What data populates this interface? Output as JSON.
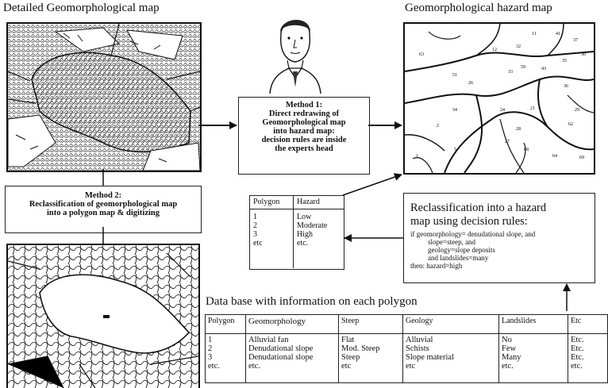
{
  "titles": {
    "detailed_map": "Detailed Geomorphological map",
    "hazard_map": "Geomorphological hazard map",
    "database": "Data base with information on each polygon"
  },
  "method1": {
    "heading": "Method 1:",
    "lines": [
      "Direct redrawing of",
      "Geomorphological map",
      "into hazard map:",
      "decision rules are inside",
      "the experts head"
    ]
  },
  "method2": {
    "heading": "Method 2:",
    "lines": [
      "Reclassification of geomorphological map",
      "into a polygon map & digitizing"
    ]
  },
  "legend": {
    "headers": [
      "Polygon",
      "Hazard"
    ],
    "polygons": [
      "1",
      "2",
      "3",
      "etc"
    ],
    "hazards": [
      "Low",
      "Moderate",
      "High",
      "etc."
    ]
  },
  "reclass": {
    "title_lines": [
      "Reclassification into a hazard",
      "map using decision rules:"
    ],
    "rule_lines": [
      "if   geomorphology= denudational slope, and",
      "slope=steep, and",
      "geology=slope deposits",
      "and landslides=many",
      "then: hazard=high"
    ]
  },
  "database": {
    "headers": [
      "Polygon",
      "Geomorphology",
      "Steep",
      "Geology",
      "Landslides",
      "Etc"
    ],
    "rows": {
      "polygon": [
        "1",
        "2",
        "3",
        "etc."
      ],
      "geomorphology": [
        "Alluvial fan",
        "Denudational slope",
        "Denudational slope",
        "etc."
      ],
      "steep": [
        "Flat",
        "Mod.  Steep",
        "Steep",
        "etc"
      ],
      "geology": [
        "Alluvial",
        "Schists",
        "Slope material",
        "etc"
      ],
      "landslides": [
        "No",
        "Few",
        "Many",
        "etc."
      ],
      "etc": [
        "Etc.",
        "Etc.",
        "Etc.",
        "etc."
      ]
    }
  },
  "hazard_map_labels": [
    "41",
    "37",
    "30",
    "11",
    "35",
    "12",
    "32",
    "63",
    "51",
    "26",
    "33",
    "59",
    "43",
    "36",
    "34",
    "24",
    "2",
    "21",
    "29",
    "62",
    "1",
    "5",
    "68",
    "27",
    "28",
    "64",
    "69"
  ],
  "colors": {
    "line": "#111111",
    "hatch": "#333333"
  }
}
